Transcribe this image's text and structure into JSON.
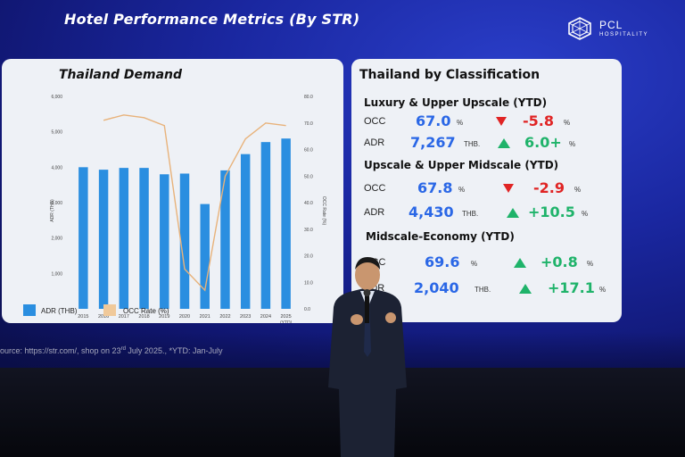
{
  "slide": {
    "title": "Hotel Performance Metrics (By STR)",
    "logo": {
      "name": "PCL",
      "sub": "HOSPITALITY",
      "icon": "geometric-logo-icon"
    },
    "colors": {
      "screen": "#1a27a0",
      "bar": "#2a8ee0",
      "occ_line": "#e8b27a",
      "accent_blue": "#2a67e6",
      "down": "#e02424",
      "up": "#1fb36a"
    }
  },
  "left_panel": {
    "title": "Thailand Demand",
    "y_left_label": "ADR (THB)",
    "y_right_label": "OCC Rate (%)",
    "legend": {
      "adr": "ADR (THB)",
      "occ": "OCC Rate (%)"
    },
    "x_last_sub": "(YTD)"
  },
  "chart_data": {
    "type": "bar",
    "title": "Thailand Demand",
    "categories": [
      "2015",
      "2016",
      "2017",
      "2018",
      "2019",
      "2020",
      "2021",
      "2022",
      "2023",
      "2024",
      "2025"
    ],
    "series": [
      {
        "name": "ADR (THB)",
        "type": "bar",
        "axis": "left",
        "values": [
          4000,
          3930,
          3980,
          3980,
          3800,
          3820,
          2960,
          3910,
          4370,
          4710,
          4810
        ]
      },
      {
        "name": "OCC Rate (%)",
        "type": "line",
        "axis": "right",
        "values": [
          null,
          71,
          73,
          72,
          69,
          15,
          7,
          50,
          64,
          70,
          69
        ]
      }
    ],
    "y_left": {
      "ticks": [
        "6,000",
        "5,000",
        "4,000",
        "3,000",
        "2,000",
        "1,000"
      ],
      "range": [
        0,
        6000
      ]
    },
    "y_right": {
      "ticks": [
        "80.0",
        "70.0",
        "60.0",
        "50.0",
        "40.0",
        "30.0",
        "20.0",
        "10.0",
        "0.0"
      ],
      "range": [
        0,
        80
      ]
    },
    "legend_placement": "bottom-left",
    "grid": false
  },
  "right_panel": {
    "title": "Thailand by Classification",
    "sections": [
      {
        "title": "Luxury & Upper Upscale (YTD)",
        "rows": [
          {
            "label": "OCC",
            "value": "67.0",
            "unit": "%",
            "direction": "down",
            "change": "-5.8",
            "change_unit": "%"
          },
          {
            "label": "ADR",
            "value": "7,267",
            "unit": "THB.",
            "direction": "up",
            "change": "6.0+",
            "change_unit": "%"
          }
        ]
      },
      {
        "title": "Upscale & Upper Midscale (YTD)",
        "rows": [
          {
            "label": "OCC",
            "value": "67.8",
            "unit": "%",
            "direction": "down",
            "change": "-2.9",
            "change_unit": "%"
          },
          {
            "label": "ADR",
            "value": "4,430",
            "unit": "THB.",
            "direction": "up",
            "change": "+10.5",
            "change_unit": "%"
          }
        ]
      },
      {
        "title": "Midscale-Economy (YTD)",
        "rows": [
          {
            "label": "OCC",
            "value": "69.6",
            "unit": "%",
            "direction": "up",
            "change": "+0.8",
            "change_unit": "%"
          },
          {
            "label": "ADR",
            "value": "2,040",
            "unit": "THB.",
            "direction": "up",
            "change": "+17.1",
            "change_unit": "%"
          }
        ]
      }
    ]
  },
  "source": {
    "prefix": "ource: https://str.com/, shop on 23",
    "sup": "rd",
    "suffix": " July 2025., *YTD: Jan-July"
  }
}
